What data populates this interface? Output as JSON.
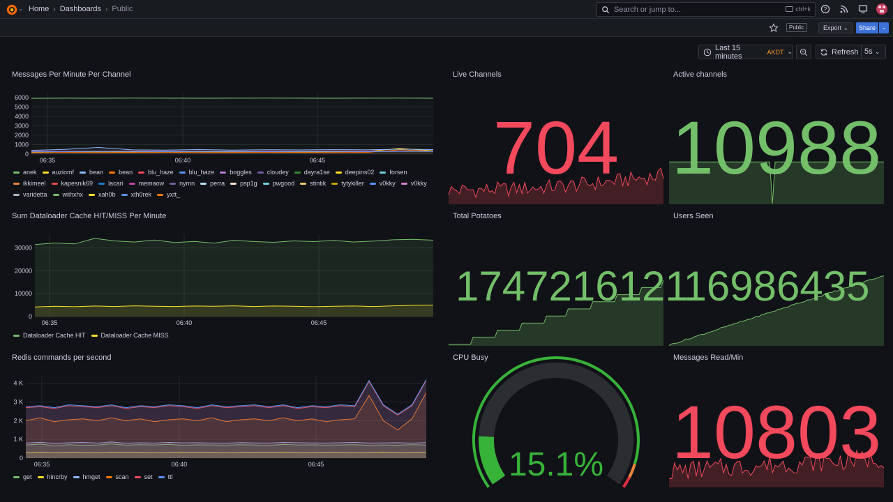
{
  "topbar": {
    "breadcrumbs": [
      "Home",
      "Dashboards",
      "Public"
    ],
    "search_placeholder": "Search or jump to...",
    "search_shortcut": "ctrl+k",
    "icons": [
      "help-icon",
      "rss-icon",
      "tv-icon",
      "avatar"
    ]
  },
  "toolbar": {
    "public_badge": "Public",
    "export_label": "Export",
    "share_label": "Share"
  },
  "timepicker": {
    "range": "Last 15 minutes",
    "timezone": "AKDT",
    "refresh_label": "Refresh",
    "interval": "5s"
  },
  "panels": {
    "messages": {
      "title": "Messages Per Minute Per Channel",
      "legend": [
        {
          "name": "anek",
          "color": "#73bf69"
        },
        {
          "name": "auziomf",
          "color": "#fade2a"
        },
        {
          "name": "bean",
          "color": "#8ab8ff"
        },
        {
          "name": "bean",
          "color": "#ff780a"
        },
        {
          "name": "blu_haze",
          "color": "#f2495c"
        },
        {
          "name": "blu_haze",
          "color": "#5794f2"
        },
        {
          "name": "boggles",
          "color": "#b877d9"
        },
        {
          "name": "cloudey",
          "color": "#705da0"
        },
        {
          "name": "dayra1se",
          "color": "#37872d"
        },
        {
          "name": "deepins02",
          "color": "#fade2a"
        },
        {
          "name": "forsen",
          "color": "#6ed0e0"
        },
        {
          "name": "ikkimeel",
          "color": "#ef843c"
        },
        {
          "name": "kapesnik69",
          "color": "#e24d42"
        },
        {
          "name": "lacari",
          "color": "#1f78c1"
        },
        {
          "name": "memaow",
          "color": "#ba43a9"
        },
        {
          "name": "nymn",
          "color": "#705da0"
        },
        {
          "name": "perra",
          "color": "#badff4"
        },
        {
          "name": "psp1g",
          "color": "#f9e2d2"
        },
        {
          "name": "pwgood",
          "color": "#6ed0e0"
        },
        {
          "name": "stintik",
          "color": "#f2c96d"
        },
        {
          "name": "tytykiller",
          "color": "#cca300"
        },
        {
          "name": "v0kky",
          "color": "#5794f2"
        },
        {
          "name": "v0kky",
          "color": "#d683ce"
        },
        {
          "name": "varidetta",
          "color": "#a9b6c2"
        },
        {
          "name": "wiihxhx",
          "color": "#73bf69"
        },
        {
          "name": "xah0b",
          "color": "#fade2a"
        },
        {
          "name": "xth0rek",
          "color": "#5794f2"
        },
        {
          "name": "yxtt_",
          "color": "#ff780a"
        }
      ],
      "chart_data": {
        "type": "line",
        "x_ticks": [
          "06:35",
          "06:40",
          "06:45"
        ],
        "y_ticks": [
          "0",
          "1000",
          "2000",
          "3000",
          "4000",
          "5000",
          "6000"
        ],
        "ylim": [
          0,
          6500
        ],
        "series": [
          {
            "name": "anek",
            "values": [
              5900,
              5920,
              5910,
              5930,
              5920,
              5910,
              5920,
              5930,
              5920,
              5910,
              5920,
              5930,
              5910
            ]
          },
          {
            "name": "auziomf",
            "values": [
              220,
              260,
              240,
              230,
              270,
              250,
              240,
              260,
              230,
              250,
              270,
              600,
              350
            ]
          },
          {
            "name": "bean",
            "values": [
              400,
              500,
              700,
              450,
              420,
              480,
              430,
              460,
              440,
              470,
              450,
              520,
              480
            ]
          },
          {
            "name": "bean",
            "values": [
              150,
              180,
              160,
              170,
              190,
              160,
              170,
              180,
              170,
              160,
              180,
              450,
              300
            ]
          },
          {
            "name": "blu_haze",
            "values": [
              300,
              320,
              310,
              330,
              320,
              310,
              320,
              330,
              320,
              340,
              330,
              300,
              310
            ]
          },
          {
            "name": "blu_haze",
            "values": [
              250,
              260,
              280,
              270,
              260,
              280,
              270,
              260,
              280,
              270,
              260,
              280,
              270
            ]
          }
        ]
      }
    },
    "cache": {
      "title": "Sum Dataloader Cache HIT/MISS Per Minute",
      "legend": [
        {
          "name": "Dataloader Cache HIT",
          "color": "#73bf69"
        },
        {
          "name": "Dataloader Cache MISS",
          "color": "#fade2a"
        }
      ],
      "chart_data": {
        "type": "area",
        "x_ticks": [
          "06:35",
          "06:40",
          "06:45"
        ],
        "y_ticks": [
          "0",
          "10000",
          "20000",
          "30000"
        ],
        "ylim": [
          0,
          36000
        ],
        "series": [
          {
            "name": "Dataloader Cache HIT",
            "values": [
              31500,
              32200,
              31800,
              34200,
              33100,
              32600,
              33500,
              32400,
              32900,
              32100,
              33400,
              32800,
              32500,
              33100,
              32800,
              33300,
              32600,
              33000,
              33600,
              33800,
              33400
            ]
          },
          {
            "name": "Dataloader Cache MISS",
            "values": [
              4200,
              4500,
              4300,
              4600,
              4400,
              4700,
              4500,
              4400,
              4600,
              4500,
              4700,
              4400,
              4600,
              4500,
              4300,
              4500,
              4600,
              4400,
              4700,
              4900,
              5000
            ]
          }
        ]
      }
    },
    "redis": {
      "title": "Redis commands per second",
      "legend": [
        {
          "name": "get",
          "color": "#73bf69"
        },
        {
          "name": "hincrby",
          "color": "#fade2a"
        },
        {
          "name": "hmget",
          "color": "#8ab8ff"
        },
        {
          "name": "scan",
          "color": "#ff780a"
        },
        {
          "name": "set",
          "color": "#f2495c"
        },
        {
          "name": "ttl",
          "color": "#5794f2"
        }
      ],
      "chart_data": {
        "type": "area",
        "x_ticks": [
          "06:35",
          "06:40",
          "06:45"
        ],
        "y_ticks": [
          "0",
          "1 K",
          "2 K",
          "3 K",
          "4 K"
        ],
        "ylim": [
          0,
          4400
        ],
        "series": [
          {
            "name": "get",
            "values": [
              700,
              750,
              650,
              720,
              680,
              700,
              760,
              690,
              720,
              700,
              740,
              680,
              710,
              700,
              690,
              720,
              700,
              680,
              730,
              700,
              710,
              690,
              700,
              720,
              680,
              700,
              690,
              720,
              700
            ]
          },
          {
            "name": "hincrby",
            "values": [
              300,
              320,
              280,
              310,
              300,
              290,
              320,
              300,
              310,
              290,
              300,
              320,
              300,
              310,
              290,
              300,
              310,
              300,
              320,
              290,
              300,
              310,
              300,
              290,
              300,
              320,
              300,
              300,
              310
            ]
          },
          {
            "name": "hmget",
            "values": [
              800,
              850,
              780,
              820,
              840,
              800,
              860,
              790,
              820,
              800,
              840,
              810,
              820,
              800,
              790,
              830,
              810,
              800,
              840,
              820,
              810,
              800,
              820,
              840,
              800,
              810,
              820,
              800,
              830
            ]
          },
          {
            "name": "scan",
            "values": [
              2000,
              2150,
              1950,
              2050,
              2100,
              2000,
              2150,
              2000,
              2100,
              1950,
              2050,
              2100,
              2000,
              2150,
              1950,
              2050,
              2100,
              2000,
              2150,
              2000,
              2100,
              1950,
              2050,
              2100,
              3350,
              2000,
              1500,
              2100,
              3500
            ]
          },
          {
            "name": "set",
            "values": [
              2700,
              2750,
              2650,
              2800,
              2750,
              2700,
              2800,
              2650,
              2750,
              2700,
              2800,
              2750,
              2650,
              2800,
              2700,
              2750,
              2800,
              2700,
              2800,
              2650,
              2750,
              2700,
              2800,
              2750,
              4100,
              2800,
              2300,
              2800,
              4150
            ]
          },
          {
            "name": "ttl",
            "values": [
              2750,
              2800,
              2700,
              2850,
              2800,
              2750,
              2850,
              2700,
              2800,
              2750,
              2850,
              2800,
              2700,
              2850,
              2750,
              2800,
              2850,
              2750,
              2850,
              2700,
              2800,
              2750,
              2850,
              2800,
              4150,
              2850,
              2350,
              2850,
              4200
            ]
          }
        ]
      }
    },
    "live": {
      "title": "Live Channels",
      "value": "704",
      "color": "#f2495c"
    },
    "active": {
      "title": "Active channels",
      "value": "10988",
      "color": "#73bf69"
    },
    "potatoes": {
      "title": "Total Potatoes",
      "value": "1747216121",
      "color": "#73bf69"
    },
    "users": {
      "title": "Users Seen",
      "value": "16986435",
      "color": "#73bf69"
    },
    "cpu": {
      "title": "CPU Busy",
      "value": "15.1%",
      "percent": 15.1,
      "color": "#37b339"
    },
    "msgread": {
      "title": "Messages Read/Min",
      "value": "10803",
      "color": "#f2495c"
    }
  }
}
